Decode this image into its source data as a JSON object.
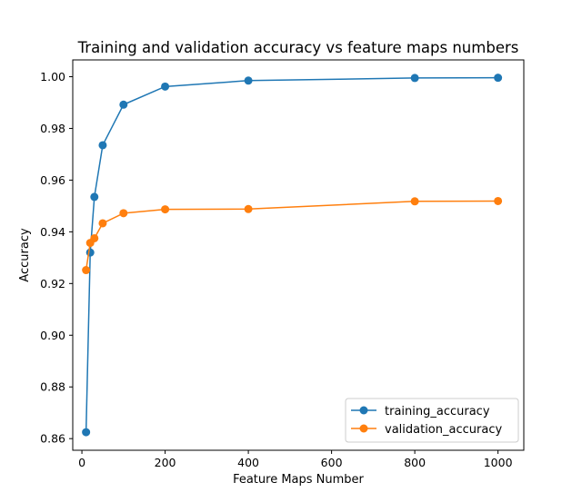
{
  "chart_data": {
    "type": "line",
    "title": "Training and validation accuracy vs feature maps numbers",
    "xlabel": "Feature Maps Number",
    "ylabel": "Accuracy",
    "xlim": [
      -22,
      1062
    ],
    "ylim": [
      0.8555,
      1.0065
    ],
    "xticks": [
      0,
      200,
      400,
      600,
      800,
      1000
    ],
    "yticks": [
      0.86,
      0.88,
      0.9,
      0.92,
      0.94,
      0.96,
      0.98,
      1.0
    ],
    "ytick_labels": [
      "0.86",
      "0.88",
      "0.90",
      "0.92",
      "0.94",
      "0.96",
      "0.98",
      "1.00"
    ],
    "legend_position": "lower-right",
    "grid": false,
    "series": [
      {
        "name": "training_accuracy",
        "color": "#1f77b4",
        "x": [
          10,
          20,
          30,
          50,
          100,
          200,
          400,
          800,
          1000
        ],
        "y": [
          0.8625,
          0.932,
          0.9535,
          0.9735,
          0.9892,
          0.9962,
          0.9985,
          0.9995,
          0.9996
        ]
      },
      {
        "name": "validation_accuracy",
        "color": "#ff7f0e",
        "x": [
          10,
          20,
          30,
          50,
          100,
          200,
          400,
          800,
          1000
        ],
        "y": [
          0.9252,
          0.9357,
          0.9375,
          0.9433,
          0.9472,
          0.9487,
          0.9488,
          0.9518,
          0.9519
        ]
      }
    ]
  }
}
